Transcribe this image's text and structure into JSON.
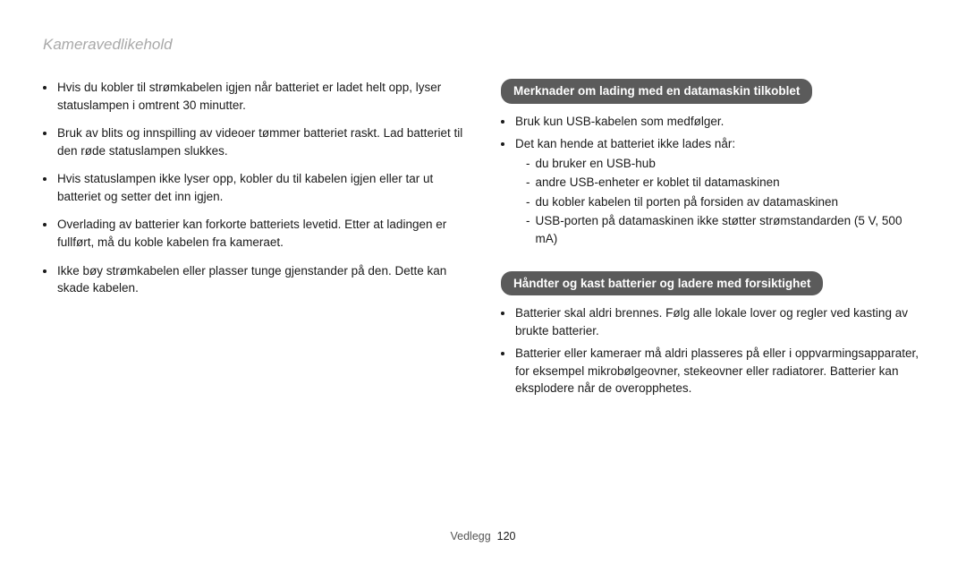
{
  "pageTitle": "Kameravedlikehold",
  "left": {
    "bullets": [
      "Hvis du kobler til strømkabelen igjen når batteriet er ladet helt opp, lyser statuslampen i omtrent 30 minutter.",
      "Bruk av blits og innspilling av videoer tømmer batteriet raskt. Lad batteriet til den røde statuslampen slukkes.",
      "Hvis statuslampen ikke lyser opp, kobler du til kabelen igjen eller tar ut batteriet og setter det inn igjen.",
      "Overlading av batterier kan forkorte batteriets levetid. Etter at ladingen er fullført, må du koble kabelen fra kameraet.",
      "Ikke bøy strømkabelen eller plasser tunge gjenstander på den. Dette kan skade kabelen."
    ]
  },
  "right": {
    "section1": {
      "heading": "Merknader om lading med en datamaskin tilkoblet",
      "bullets": [
        "Bruk kun USB-kabelen som medfølger.",
        "Det kan hende at batteriet ikke lades når:"
      ],
      "subBullets": [
        "du bruker en USB-hub",
        "andre USB-enheter er koblet til datamaskinen",
        "du kobler kabelen til porten på forsiden av datamaskinen",
        "USB-porten på datamaskinen ikke støtter strømstandarden (5 V, 500 mA)"
      ]
    },
    "section2": {
      "heading": "Håndter og kast batterier og ladere med forsiktighet",
      "bullets": [
        "Batterier skal aldri brennes. Følg alle lokale lover og regler ved kasting av brukte batterier.",
        "Batterier eller kameraer må aldri plasseres på eller i oppvarmingsapparater, for eksempel mikrobølgeovner, stekeovner eller radiatorer. Batterier kan eksplodere når de overopphetes."
      ]
    }
  },
  "footer": {
    "label": "Vedlegg",
    "page": "120"
  }
}
